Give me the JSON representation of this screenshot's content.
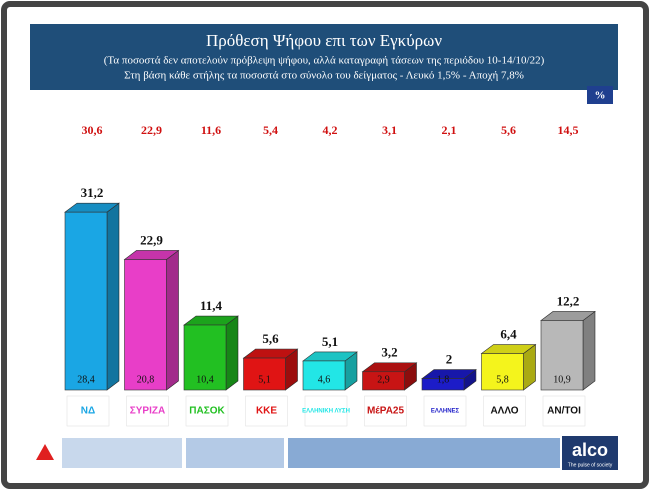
{
  "chart_data": {
    "type": "bar3d",
    "title": "Πρόθεση Ψήφου επι των Εγκύρων",
    "subtitle": [
      "(Τα ποσοστά δεν αποτελούν πρόβλεψη ψήφου, αλλά καταγραφή τάσεων της περιόδου  10-14/10/22)",
      "Στη βάση κάθε στήλης τα ποσοστά στο σύνολο του δείγματος - Λευκό 1,5% - Αποχή 7,8%"
    ],
    "unit_badge": "%",
    "categories": [
      "ΝΔ",
      "ΣΥΡΙΖΑ",
      "ΠΑΣΟΚ",
      "ΚΚΕ",
      "ΕΛΛΗΝΙΚΗ ΛΥΣΗ",
      "ΜέΡΑ25",
      "ΕΛΛΗΝΕΣ",
      "ΑΛΛΟ",
      "ΑΝ/ΤΟΙ"
    ],
    "colors": [
      "#1aa6e4",
      "#e83ec8",
      "#22c022",
      "#e01414",
      "#22e6e6",
      "#c81414",
      "#1c1cc8",
      "#f4f41c",
      "#b8b8b8"
    ],
    "series": [
      {
        "values": [
          31.2,
          22.9,
          11.4,
          5.6,
          5.1,
          3.2,
          2,
          6.4,
          12.2
        ],
        "value_labels": [
          "31,2",
          "22,9",
          "11,4",
          "5,6",
          "5,1",
          "3,2",
          "2",
          "6,4",
          "12,2"
        ]
      },
      {
        "values": [
          28.4,
          20.8,
          10.4,
          5.1,
          4.6,
          2.9,
          1.8,
          5.8,
          10.9
        ],
        "value_labels": [
          "28,4",
          "20,8",
          "10,4",
          "5,1",
          "4,6",
          "2,9",
          "1,8",
          "5,8",
          "10,9"
        ]
      },
      {
        "values": [
          30.6,
          22.9,
          11.6,
          5.4,
          4.2,
          3.1,
          2.1,
          5.6,
          14.5
        ],
        "value_labels": [
          "30,6",
          "22,9",
          "11,6",
          "5,4",
          "4,2",
          "3,1",
          "2,1",
          "5,6",
          "14,5"
        ],
        "color": "#d01010"
      }
    ],
    "brand": "alco",
    "brand_tagline": "The pulse of society"
  }
}
